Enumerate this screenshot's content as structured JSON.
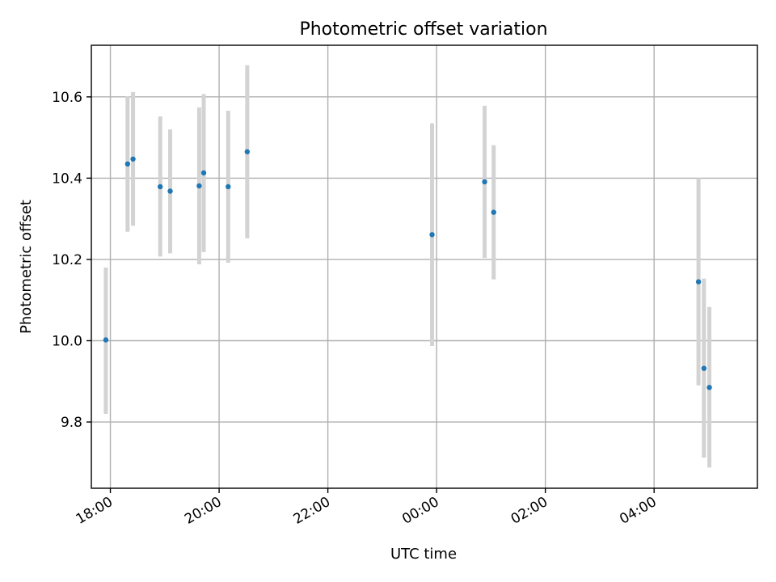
{
  "chart_data": {
    "type": "scatter",
    "title": "Photometric offset variation",
    "xlabel": "UTC time",
    "ylabel": "Photometric offset",
    "x_tick_labels": [
      "18:00",
      "20:00",
      "22:00",
      "00:00",
      "02:00",
      "04:00"
    ],
    "y_tick_labels": [
      "9.8",
      "10.0",
      "10.2",
      "10.4",
      "10.6"
    ],
    "x_ticks_hours": [
      18,
      20,
      22,
      24,
      26,
      28
    ],
    "y_ticks": [
      9.8,
      10.0,
      10.2,
      10.4,
      10.6
    ],
    "xlim_hours": [
      17.65,
      29.9
    ],
    "ylim": [
      9.637,
      10.727
    ],
    "grid": true,
    "colors": {
      "point": "#1f77b4",
      "errorbar": "#d3d3d3"
    },
    "points": [
      {
        "time": "17:55",
        "value": 10.002,
        "low": 9.82,
        "high": 10.18
      },
      {
        "time": "18:19",
        "value": 10.435,
        "low": 10.268,
        "high": 10.602
      },
      {
        "time": "18:25",
        "value": 10.447,
        "low": 10.283,
        "high": 10.612
      },
      {
        "time": "18:55",
        "value": 10.379,
        "low": 10.207,
        "high": 10.552
      },
      {
        "time": "19:06",
        "value": 10.368,
        "low": 10.215,
        "high": 10.52
      },
      {
        "time": "19:38",
        "value": 10.381,
        "low": 10.188,
        "high": 10.574
      },
      {
        "time": "19:43",
        "value": 10.413,
        "low": 10.218,
        "high": 10.607
      },
      {
        "time": "20:10",
        "value": 10.379,
        "low": 10.192,
        "high": 10.566
      },
      {
        "time": "20:31",
        "value": 10.465,
        "low": 10.252,
        "high": 10.678
      },
      {
        "time": "23:55",
        "value": 10.261,
        "low": 9.987,
        "high": 10.535
      },
      {
        "time": "00:53",
        "value": 10.391,
        "low": 10.204,
        "high": 10.578
      },
      {
        "time": "01:03",
        "value": 10.316,
        "low": 10.151,
        "high": 10.481
      },
      {
        "time": "04:49",
        "value": 10.145,
        "low": 9.89,
        "high": 10.4
      },
      {
        "time": "04:55",
        "value": 9.932,
        "low": 9.712,
        "high": 10.153
      },
      {
        "time": "05:01",
        "value": 9.885,
        "low": 9.688,
        "high": 10.083
      }
    ]
  }
}
